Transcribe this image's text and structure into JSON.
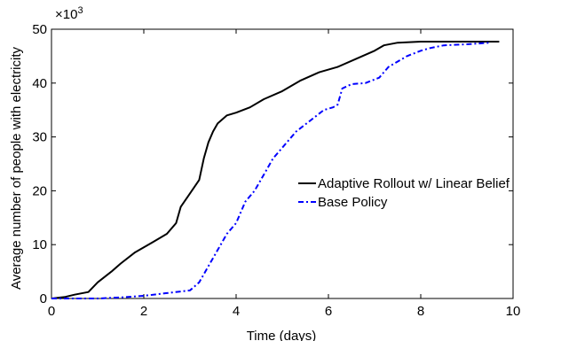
{
  "chart_data": {
    "type": "line",
    "xlabel": "Time (days)",
    "ylabel": "Average number of people with electricity",
    "y_exponent_label": "×10",
    "y_exponent_power": "3",
    "xlim": [
      0,
      10
    ],
    "ylim": [
      0,
      50
    ],
    "x_ticks": [
      "0",
      "2",
      "4",
      "6",
      "8",
      "10"
    ],
    "y_ticks": [
      "0",
      "10",
      "20",
      "30",
      "40",
      "50"
    ],
    "x_tick_values": [
      0,
      2,
      4,
      6,
      8,
      10
    ],
    "y_tick_values": [
      0,
      10,
      20,
      30,
      40,
      50
    ],
    "grid": false,
    "legend_position": "right",
    "series": [
      {
        "name": "Adaptive Rollout w/ Linear Belief",
        "color": "#000000",
        "style": "solid",
        "x": [
          0,
          0.3,
          0.5,
          0.8,
          1.0,
          1.3,
          1.5,
          1.8,
          2.0,
          2.2,
          2.5,
          2.7,
          2.8,
          3.0,
          3.2,
          3.3,
          3.4,
          3.5,
          3.6,
          3.8,
          4.0,
          4.3,
          4.6,
          5.0,
          5.4,
          5.8,
          6.2,
          6.6,
          7.0,
          7.2,
          7.5,
          8.0,
          8.5,
          9.0,
          9.7
        ],
        "y": [
          0,
          0.3,
          0.7,
          1.2,
          3,
          5,
          6.5,
          8.5,
          9.5,
          10.5,
          12,
          14,
          17,
          19.5,
          22,
          26,
          29,
          31,
          32.5,
          34,
          34.5,
          35.5,
          37,
          38.5,
          40.5,
          42,
          43,
          44.5,
          46,
          47,
          47.5,
          47.7,
          47.7,
          47.7,
          47.7
        ]
      },
      {
        "name": "Base Policy",
        "color": "#0000ff",
        "style": "dashdot",
        "x": [
          0,
          1.0,
          1.5,
          2.0,
          2.5,
          3.0,
          3.2,
          3.4,
          3.6,
          3.8,
          4.0,
          4.2,
          4.4,
          4.6,
          4.8,
          5.0,
          5.3,
          5.6,
          5.9,
          6.1,
          6.2,
          6.3,
          6.5,
          6.8,
          7.1,
          7.3,
          7.5,
          7.7,
          8.0,
          8.2,
          8.5,
          9.0,
          9.5
        ],
        "y": [
          0,
          0,
          0.2,
          0.5,
          1,
          1.5,
          3,
          6,
          9,
          12,
          14,
          18,
          20,
          23,
          26,
          28,
          31,
          33,
          35,
          35.5,
          36,
          39,
          39.8,
          40,
          41,
          43,
          44,
          45,
          46,
          46.5,
          47,
          47.2,
          47.5
        ]
      }
    ]
  }
}
